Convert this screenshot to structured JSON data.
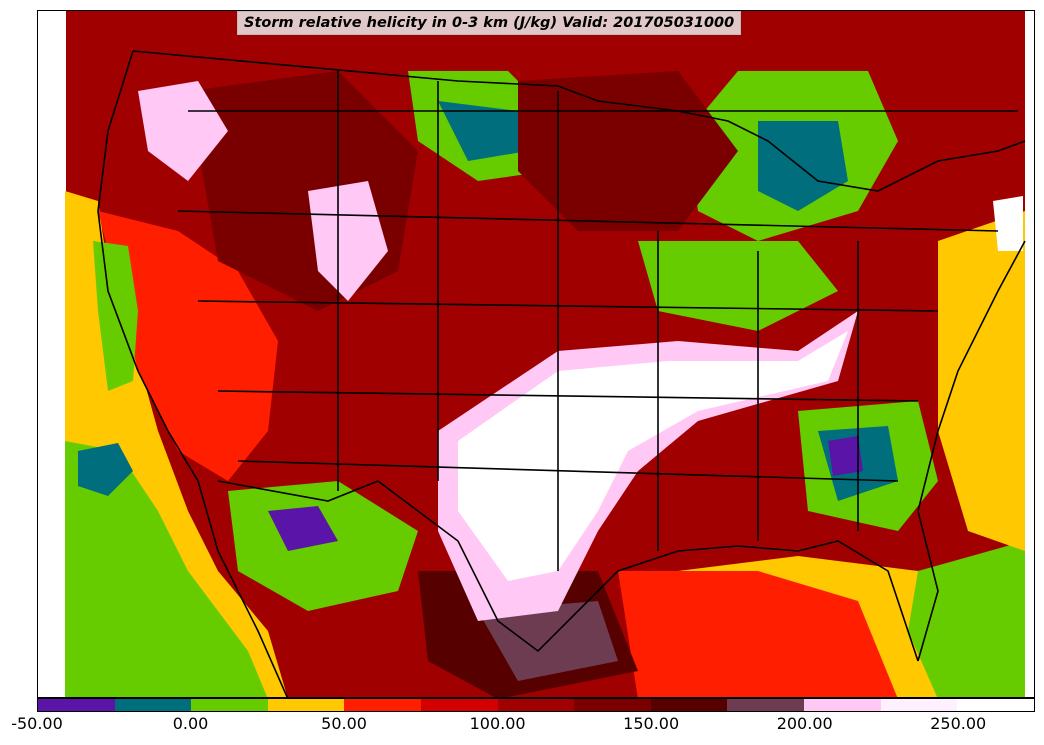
{
  "title": "Storm relative helicity in 0-3 km (J/kg) Valid: 201705031000",
  "colorbar": {
    "levels": [
      -50,
      -25,
      0,
      25,
      50,
      75,
      100,
      125,
      150,
      175,
      200,
      225,
      250,
      275
    ],
    "colors": [
      "#5a14a8",
      "#006e7c",
      "#66cc00",
      "#ffc800",
      "#ff1e00",
      "#d20000",
      "#a00000",
      "#7a0000",
      "#560000",
      "#6e3c50",
      "#ffc8f5",
      "#fff0ff",
      "#ffffff"
    ],
    "tick_labels": [
      "-50.00",
      "0.00",
      "50.00",
      "100.00",
      "150.00",
      "200.00",
      "250.00"
    ]
  },
  "map": {
    "region": "Contiguous United States",
    "layers": [
      "storm-relative-helicity-shading",
      "coastlines",
      "country-borders",
      "state-borders"
    ]
  }
}
